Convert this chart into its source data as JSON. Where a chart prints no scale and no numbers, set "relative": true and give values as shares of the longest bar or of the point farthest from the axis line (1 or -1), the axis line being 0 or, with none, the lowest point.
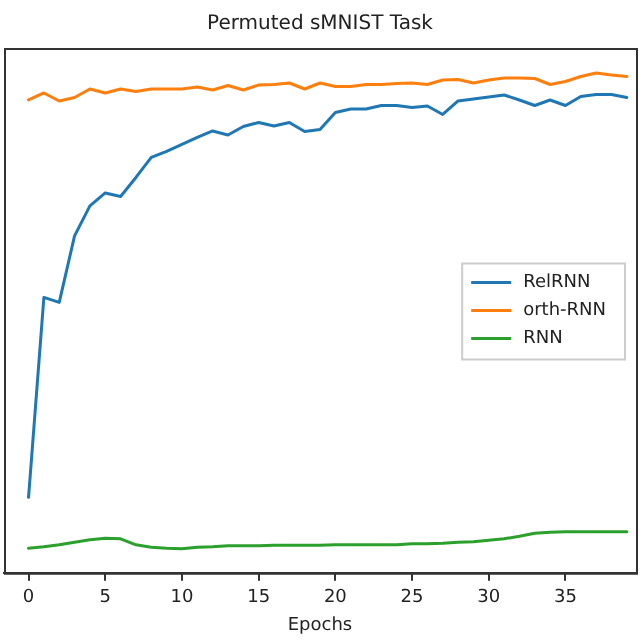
{
  "chart_data": {
    "type": "line",
    "title": "Permuted sMNIST Task",
    "xlabel": "Epochs",
    "relative": true,
    "tick_labels": "x",
    "grid": false,
    "legend": "right",
    "marker": "none",
    "line_style": "solid",
    "x": [
      0,
      1,
      2,
      3,
      4,
      5,
      6,
      7,
      8,
      9,
      10,
      11,
      12,
      13,
      14,
      15,
      16,
      17,
      18,
      19,
      20,
      21,
      22,
      23,
      24,
      25,
      26,
      27,
      28,
      29,
      30,
      31,
      32,
      33,
      34,
      35,
      36,
      37,
      38,
      39
    ],
    "xlim": [
      -1.6,
      39.6
    ],
    "xticks": [
      0,
      5,
      10,
      15,
      20,
      25,
      30,
      35
    ],
    "series": [
      {
        "name": "RelRNN",
        "color": "#1f77b4",
        "values": [
          0.151,
          0.551,
          0.541,
          0.674,
          0.734,
          0.76,
          0.753,
          0.791,
          0.831,
          0.843,
          0.857,
          0.871,
          0.884,
          0.876,
          0.893,
          0.901,
          0.894,
          0.901,
          0.883,
          0.887,
          0.921,
          0.928,
          0.928,
          0.935,
          0.935,
          0.931,
          0.934,
          0.917,
          0.944,
          0.948,
          0.952,
          0.956,
          0.946,
          0.935,
          0.946,
          0.935,
          0.953,
          0.957,
          0.957,
          0.951
        ]
      },
      {
        "name": "orth-RNN",
        "color": "#ff7f0e",
        "values": [
          0.946,
          0.96,
          0.944,
          0.951,
          0.968,
          0.96,
          0.968,
          0.963,
          0.968,
          0.968,
          0.968,
          0.972,
          0.966,
          0.975,
          0.966,
          0.976,
          0.977,
          0.98,
          0.968,
          0.98,
          0.973,
          0.973,
          0.977,
          0.977,
          0.979,
          0.98,
          0.977,
          0.986,
          0.987,
          0.98,
          0.986,
          0.99,
          0.99,
          0.989,
          0.977,
          0.983,
          0.993,
          1.0,
          0.996,
          0.993
        ]
      },
      {
        "name": "RNN",
        "color": "#2ca02c",
        "values": [
          0.049,
          0.052,
          0.056,
          0.061,
          0.066,
          0.069,
          0.068,
          0.056,
          0.051,
          0.049,
          0.048,
          0.051,
          0.052,
          0.054,
          0.054,
          0.054,
          0.055,
          0.055,
          0.055,
          0.055,
          0.056,
          0.056,
          0.056,
          0.056,
          0.056,
          0.058,
          0.058,
          0.059,
          0.061,
          0.062,
          0.065,
          0.068,
          0.073,
          0.079,
          0.081,
          0.082,
          0.082,
          0.082,
          0.082,
          0.082
        ]
      }
    ]
  }
}
